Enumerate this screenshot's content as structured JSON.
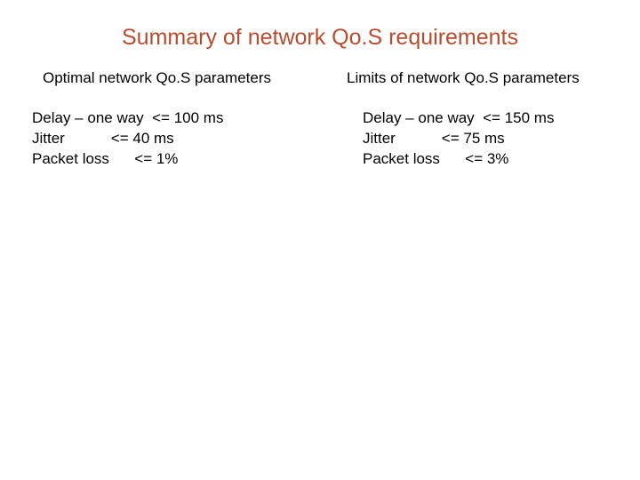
{
  "title": "Summary of network Qo.S requirements",
  "left": {
    "heading": "Optimal network Qo.S parameters",
    "rows": [
      {
        "label": "Delay – one way",
        "op": "<=",
        "value": "100 ms"
      },
      {
        "label": "Jitter",
        "op": "<=",
        "value": "40 ms"
      },
      {
        "label": "Packet loss",
        "op": "<=",
        "value": "1%"
      }
    ]
  },
  "right": {
    "heading": "Limits of network Qo.S parameters",
    "rows": [
      {
        "label": "Delay – one way",
        "op": "<=",
        "value": "150 ms"
      },
      {
        "label": "Jitter",
        "op": "<=",
        "value": "75 ms"
      },
      {
        "label": "Packet loss",
        "op": "<=",
        "value": "3%"
      }
    ]
  },
  "styling": {
    "title_color": "#b84c2e",
    "title_fontsize": 25,
    "body_fontsize": 17,
    "body_color": "#000000",
    "background_color": "#ffffff",
    "label_column_width_chars": 17
  }
}
